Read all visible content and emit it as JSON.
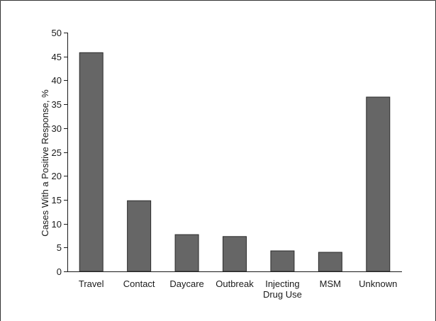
{
  "chart_data": {
    "type": "bar",
    "title": "",
    "xlabel": "",
    "ylabel": "Cases With a Positive Response, %",
    "ylim": [
      0,
      50
    ],
    "yticks": [
      0,
      5,
      10,
      15,
      20,
      25,
      30,
      35,
      40,
      45,
      50
    ],
    "categories": [
      [
        "Travel"
      ],
      [
        "Contact"
      ],
      [
        "Daycare"
      ],
      [
        "Outbreak"
      ],
      [
        "Injecting",
        "Drug Use"
      ],
      [
        "MSM"
      ],
      [
        "Unknown"
      ]
    ],
    "values": [
      45.8,
      14.8,
      7.7,
      7.3,
      4.3,
      4.0,
      36.5
    ],
    "grid": false,
    "legend": "none",
    "colors": {
      "bar_fill": "#666666",
      "bar_stroke": "#2b2b2b",
      "axis": "#1a1a1a",
      "frame": "#333333"
    }
  }
}
